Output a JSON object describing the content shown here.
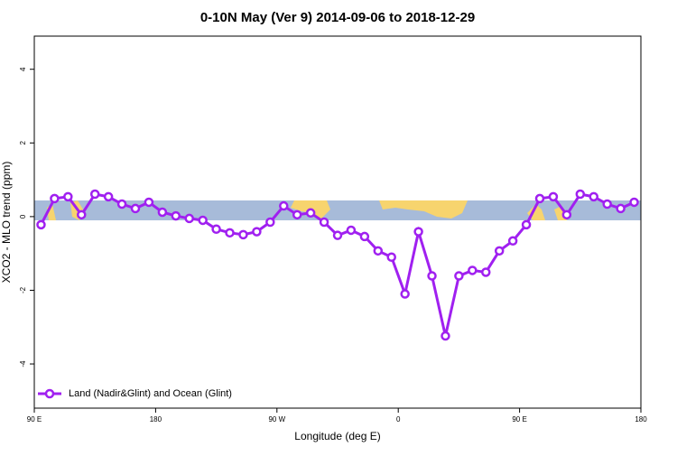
{
  "chart_data": {
    "type": "line",
    "title": "0-10N May (Ver 9)   2014-09-06 to 2018-12-29",
    "x_label": "Longitude (deg E)",
    "y_label": "XCO2 - MLO trend (ppm)",
    "x": [
      95,
      105,
      115,
      125,
      135,
      145,
      155,
      165,
      175,
      185,
      195,
      205,
      215,
      225,
      235,
      245,
      255,
      265,
      275,
      285,
      295,
      305,
      315,
      325,
      335,
      345,
      355,
      365,
      375,
      385,
      395,
      405,
      415,
      425,
      435,
      445,
      455,
      465,
      475,
      485,
      495,
      505,
      515,
      525,
      535
    ],
    "series": [
      {
        "name": "Land (Nadir&Glint) and Ocean (Glint)",
        "color": "#a020f0",
        "values": [
          -0.22,
          0.49,
          0.54,
          0.05,
          0.61,
          0.54,
          0.34,
          0.22,
          0.39,
          0.12,
          0.02,
          -0.05,
          -0.1,
          -0.34,
          -0.44,
          -0.49,
          -0.41,
          -0.15,
          0.29,
          0.05,
          0.1,
          -0.15,
          -0.51,
          -0.37,
          -0.54,
          -0.93,
          -1.1,
          -2.1,
          -0.41,
          -1.61,
          -3.24,
          -1.61,
          -1.46,
          -1.51,
          -0.93,
          -0.66,
          -0.22,
          0.49,
          0.54,
          0.05,
          0.61,
          0.54,
          0.34,
          0.22,
          0.39
        ]
      }
    ],
    "xlim": [
      90,
      540
    ],
    "xticks": [
      {
        "value": 90,
        "label": "90 E"
      },
      {
        "value": 180,
        "label": "180"
      },
      {
        "value": 270,
        "label": "90 W"
      },
      {
        "value": 360,
        "label": "0"
      },
      {
        "value": 450,
        "label": "90 E"
      },
      {
        "value": 540,
        "label": "180"
      }
    ],
    "ylim": [
      -5.2,
      4.9
    ],
    "yticks": [
      -4,
      -2,
      0,
      2,
      4
    ],
    "legend": "lower left"
  }
}
